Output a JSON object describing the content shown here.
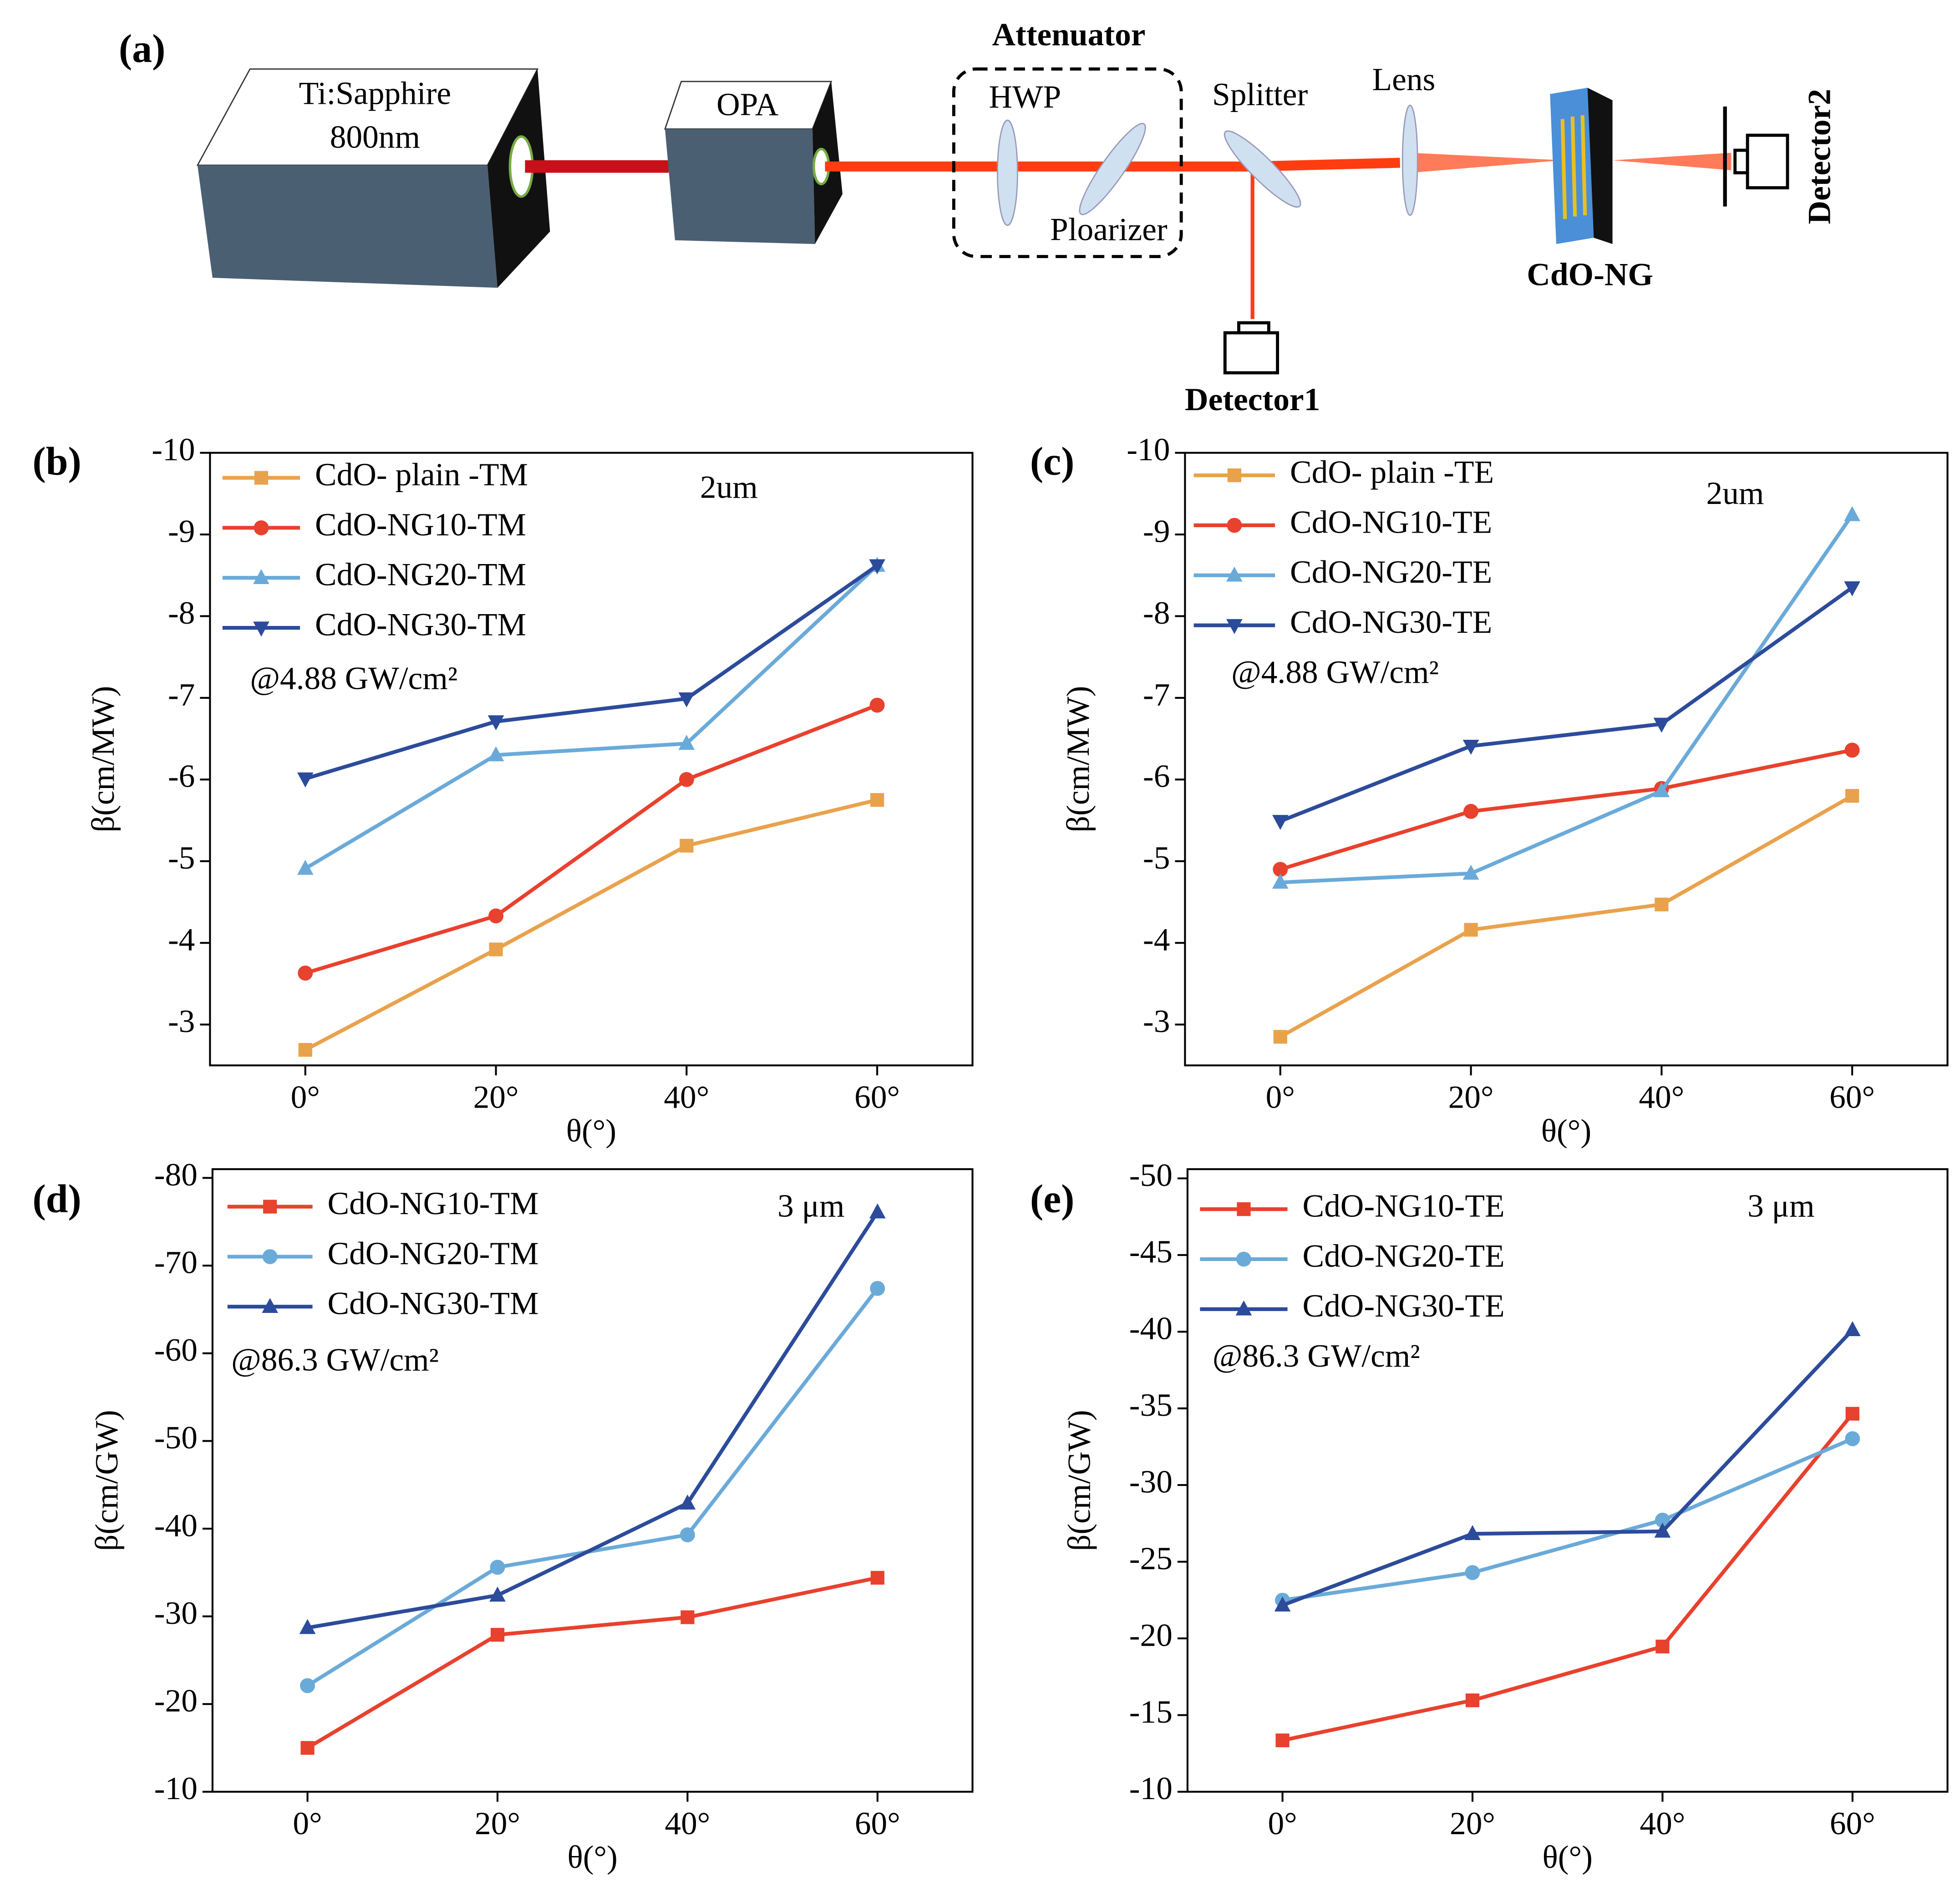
{
  "diagram": {
    "panel_label": "(a)",
    "laser": [
      "Ti:Sapphire",
      "800nm"
    ],
    "opa": "OPA",
    "attenuator": "Attenuator",
    "hwp": "HWP",
    "polarizer": "Ploarizer",
    "splitter": "Splitter",
    "lens": "Lens",
    "sample": "CdO-NG",
    "detector1": "Detector1",
    "detector2": "Detector2"
  },
  "chart_data": [
    {
      "type": "line",
      "panel_label": "(b)",
      "x_label": "θ(°)",
      "y_label": "β(cm/MW)",
      "annotations": [
        "2um",
        "@4.88 GW/cm²"
      ],
      "x": [
        0,
        20,
        40,
        60
      ],
      "xlim": [
        -10,
        70
      ],
      "xticks": [
        {
          "value": 0,
          "label": "0°"
        },
        {
          "value": 20,
          "label": "20°"
        },
        {
          "value": 40,
          "label": "40°"
        },
        {
          "value": 60,
          "label": "60°"
        }
      ],
      "ylim": [
        -2.5,
        -10
      ],
      "yticks": [
        -10,
        -9,
        -8,
        -7,
        -6,
        -5,
        -4,
        -3
      ],
      "series": [
        {
          "name": "CdO- plain -TM",
          "color": "#e9a24c",
          "marker": "square",
          "values": [
            -2.69,
            -3.92,
            -5.19,
            -5.75
          ]
        },
        {
          "name": "CdO-NG10-TM",
          "color": "#e8412e",
          "marker": "circle",
          "values": [
            -3.63,
            -4.33,
            -6.0,
            -6.91
          ]
        },
        {
          "name": "CdO-NG20-TM",
          "color": "#6aaad9",
          "marker": "triangle-up",
          "values": [
            -4.91,
            -6.3,
            -6.44,
            -8.62
          ]
        },
        {
          "name": "CdO-NG30-TM",
          "color": "#2c4b9b",
          "marker": "triangle-down",
          "values": [
            -6.01,
            -6.71,
            -6.99,
            -8.62
          ]
        }
      ]
    },
    {
      "type": "line",
      "panel_label": "(c)",
      "x_label": "θ(°)",
      "y_label": "β(cm/MW)",
      "annotations": [
        "2um",
        "@4.88 GW/cm²"
      ],
      "x": [
        0,
        20,
        40,
        60
      ],
      "xlim": [
        -10,
        70
      ],
      "xticks": [
        {
          "value": 0,
          "label": "0°"
        },
        {
          "value": 20,
          "label": "20°"
        },
        {
          "value": 40,
          "label": "40°"
        },
        {
          "value": 60,
          "label": "60°"
        }
      ],
      "ylim": [
        -2.5,
        -10
      ],
      "yticks": [
        -10,
        -9,
        -8,
        -7,
        -6,
        -5,
        -4,
        -3
      ],
      "series": [
        {
          "name": "CdO- plain -TE",
          "color": "#e9a24c",
          "marker": "square",
          "values": [
            -2.85,
            -4.16,
            -4.47,
            -5.8
          ]
        },
        {
          "name": "CdO-NG10-TE",
          "color": "#e8412e",
          "marker": "circle",
          "values": [
            -4.9,
            -5.61,
            -5.89,
            -6.36
          ]
        },
        {
          "name": "CdO-NG20-TE",
          "color": "#6aaad9",
          "marker": "triangle-up",
          "values": [
            -4.74,
            -4.85,
            -5.86,
            -9.24
          ]
        },
        {
          "name": "CdO-NG30-TE",
          "color": "#2c4b9b",
          "marker": "triangle-down",
          "values": [
            -5.49,
            -6.41,
            -6.68,
            -8.35
          ]
        }
      ]
    },
    {
      "type": "line",
      "panel_label": "(d)",
      "x_label": "θ(°)",
      "y_label": "β(cm/GW)",
      "annotations": [
        "3 μm",
        "@86.3 GW/cm²"
      ],
      "x": [
        0,
        20,
        40,
        60
      ],
      "xlim": [
        -10,
        70
      ],
      "xticks": [
        {
          "value": 0,
          "label": "0°"
        },
        {
          "value": 20,
          "label": "20°"
        },
        {
          "value": 40,
          "label": "40°"
        },
        {
          "value": 60,
          "label": "60°"
        }
      ],
      "ylim": [
        -10,
        -81
      ],
      "yticks": [
        -80,
        -70,
        -60,
        -50,
        -40,
        -30,
        -20,
        -10
      ],
      "series": [
        {
          "name": "CdO-NG10-TM",
          "color": "#e8412e",
          "marker": "square",
          "values": [
            -15.0,
            -27.9,
            -29.9,
            -34.4
          ]
        },
        {
          "name": "CdO-NG20-TM",
          "color": "#6aaad9",
          "marker": "circle",
          "values": [
            -22.1,
            -35.6,
            -39.3,
            -67.4
          ]
        },
        {
          "name": "CdO-NG30-TM",
          "color": "#2c4b9b",
          "marker": "triangle-up",
          "values": [
            -28.7,
            -32.4,
            -42.9,
            -76.1
          ]
        }
      ]
    },
    {
      "type": "line",
      "panel_label": "(e)",
      "x_label": "θ(°)",
      "y_label": "β(cm/GW)",
      "annotations": [
        "3 μm",
        "@86.3 GW/cm²"
      ],
      "x": [
        0,
        20,
        40,
        60
      ],
      "xlim": [
        -10,
        70
      ],
      "xticks": [
        {
          "value": 0,
          "label": "0°"
        },
        {
          "value": 20,
          "label": "20°"
        },
        {
          "value": 40,
          "label": "40°"
        },
        {
          "value": 60,
          "label": "60°"
        }
      ],
      "ylim": [
        -10,
        -50.6
      ],
      "yticks": [
        -50,
        -45,
        -40,
        -35,
        -30,
        -25,
        -20,
        -15,
        -10
      ],
      "series": [
        {
          "name": "CdO-NG10-TE",
          "color": "#e8412e",
          "marker": "square",
          "values": [
            -13.35,
            -15.96,
            -19.47,
            -34.65
          ]
        },
        {
          "name": "CdO-NG20-TE",
          "color": "#6aaad9",
          "marker": "circle",
          "values": [
            -22.49,
            -24.29,
            -27.71,
            -33.02
          ]
        },
        {
          "name": "CdO-NG30-TE",
          "color": "#2c4b9b",
          "marker": "triangle-up",
          "values": [
            -22.16,
            -26.82,
            -26.98,
            -40.12
          ]
        }
      ]
    }
  ]
}
